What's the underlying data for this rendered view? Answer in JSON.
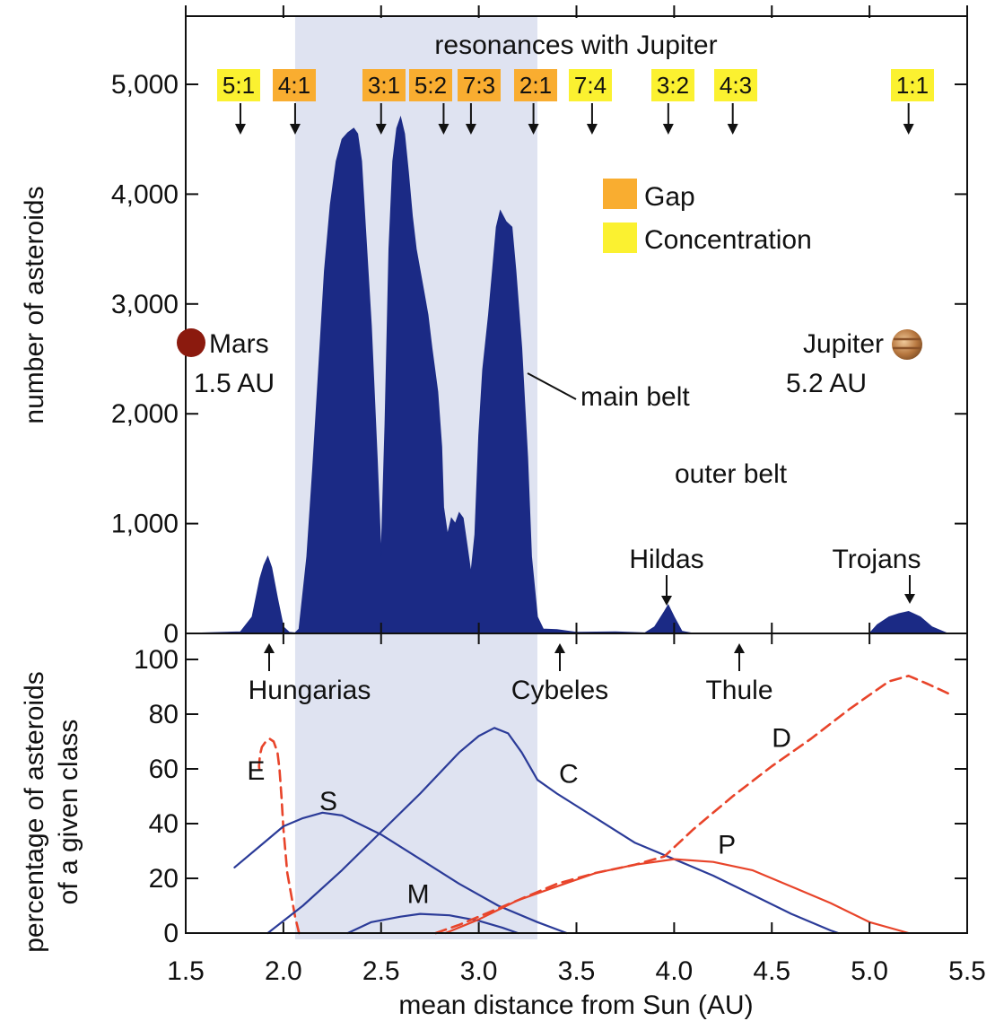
{
  "chart_data": [
    {
      "type": "area",
      "title": "resonances with Jupiter",
      "ylabel": "number of asteroids",
      "xlim": [
        1.5,
        5.5
      ],
      "ylim": [
        0,
        5000
      ],
      "yticks": [
        0,
        1000,
        2000,
        3000,
        4000,
        5000
      ],
      "ytick_labels": [
        "0",
        "1,000",
        "2,000",
        "3,000",
        "4,000",
        "5,000"
      ],
      "main_belt_range": [
        2.06,
        3.3
      ],
      "series": [
        {
          "color": "#1b2a85",
          "points": [
            [
              1.5,
              0
            ],
            [
              1.78,
              15
            ],
            [
              1.84,
              150
            ],
            [
              1.88,
              500
            ],
            [
              1.9,
              620
            ],
            [
              1.92,
              700
            ],
            [
              1.94,
              600
            ],
            [
              1.97,
              320
            ],
            [
              2.0,
              60
            ],
            [
              2.03,
              10
            ],
            [
              2.06,
              5
            ],
            [
              2.08,
              40
            ],
            [
              2.12,
              700
            ],
            [
              2.15,
              1500
            ],
            [
              2.18,
              2400
            ],
            [
              2.21,
              3300
            ],
            [
              2.24,
              3900
            ],
            [
              2.27,
              4300
            ],
            [
              2.3,
              4500
            ],
            [
              2.33,
              4560
            ],
            [
              2.36,
              4600
            ],
            [
              2.38,
              4550
            ],
            [
              2.4,
              4300
            ],
            [
              2.42,
              3700
            ],
            [
              2.45,
              2800
            ],
            [
              2.48,
              1600
            ],
            [
              2.5,
              700
            ],
            [
              2.52,
              1900
            ],
            [
              2.54,
              3500
            ],
            [
              2.56,
              4300
            ],
            [
              2.58,
              4600
            ],
            [
              2.6,
              4700
            ],
            [
              2.62,
              4550
            ],
            [
              2.64,
              4200
            ],
            [
              2.66,
              3800
            ],
            [
              2.68,
              3500
            ],
            [
              2.7,
              3300
            ],
            [
              2.72,
              3100
            ],
            [
              2.74,
              2900
            ],
            [
              2.76,
              2600
            ],
            [
              2.79,
              2200
            ],
            [
              2.81,
              1700
            ],
            [
              2.82,
              1150
            ],
            [
              2.84,
              900
            ],
            [
              2.86,
              1050
            ],
            [
              2.88,
              1000
            ],
            [
              2.9,
              1100
            ],
            [
              2.92,
              1050
            ],
            [
              2.94,
              800
            ],
            [
              2.96,
              550
            ],
            [
              2.98,
              900
            ],
            [
              3.0,
              1800
            ],
            [
              3.02,
              2400
            ],
            [
              3.05,
              2900
            ],
            [
              3.07,
              3300
            ],
            [
              3.09,
              3700
            ],
            [
              3.11,
              3850
            ],
            [
              3.14,
              3750
            ],
            [
              3.17,
              3700
            ],
            [
              3.19,
              3300
            ],
            [
              3.22,
              2600
            ],
            [
              3.25,
              1600
            ],
            [
              3.27,
              700
            ],
            [
              3.3,
              150
            ],
            [
              3.33,
              40
            ],
            [
              3.4,
              35
            ],
            [
              3.5,
              10
            ],
            [
              3.7,
              15
            ],
            [
              3.85,
              5
            ],
            [
              3.9,
              60
            ],
            [
              3.95,
              200
            ],
            [
              3.97,
              260
            ],
            [
              4.0,
              150
            ],
            [
              4.04,
              20
            ],
            [
              4.1,
              0
            ],
            [
              5.0,
              0
            ],
            [
              5.04,
              80
            ],
            [
              5.1,
              150
            ],
            [
              5.15,
              180
            ],
            [
              5.2,
              200
            ],
            [
              5.26,
              150
            ],
            [
              5.32,
              60
            ],
            [
              5.38,
              15
            ],
            [
              5.4,
              0
            ]
          ]
        }
      ],
      "resonances": [
        {
          "label": "5:1",
          "kind": "Concentration",
          "x": 1.78
        },
        {
          "label": "4:1",
          "kind": "Gap",
          "x": 2.06
        },
        {
          "label": "3:1",
          "kind": "Gap",
          "x": 2.5
        },
        {
          "label": "5:2",
          "kind": "Gap",
          "x": 2.82
        },
        {
          "label": "7:3",
          "kind": "Gap",
          "x": 2.96
        },
        {
          "label": "2:1",
          "kind": "Gap",
          "x": 3.28
        },
        {
          "label": "7:4",
          "kind": "Concentration",
          "x": 3.58
        },
        {
          "label": "3:2",
          "kind": "Concentration",
          "x": 3.97
        },
        {
          "label": "4:3",
          "kind": "Concentration",
          "x": 4.3
        },
        {
          "label": "1:1",
          "kind": "Concentration",
          "x": 5.2
        }
      ],
      "legend": [
        {
          "label": "Gap",
          "color": "#f9ad30"
        },
        {
          "label": "Concentration",
          "color": "#fbf130"
        }
      ],
      "annotations": {
        "mars": {
          "name": "Mars",
          "dist": "1.5 AU"
        },
        "jupiter": {
          "name": "Jupiter",
          "dist": "5.2 AU"
        },
        "main_belt": "main belt",
        "outer_belt": "outer belt",
        "hildas": "Hildas",
        "trojans": "Trojans",
        "hungarias": "Hungarias",
        "cybeles": "Cybeles",
        "thule": "Thule"
      },
      "colors": {
        "mars": "#8b1a0e",
        "jupiter": "#b7773f",
        "belt_band": "#dfe3f1"
      }
    },
    {
      "type": "line",
      "xlabel": "mean distance from Sun (AU)",
      "ylabel": "percentage of asteroids of a given class",
      "ylabel_lines": [
        "percentage of asteroids",
        "of a given class"
      ],
      "xlim": [
        1.5,
        5.5
      ],
      "ylim": [
        0,
        100
      ],
      "xticks": [
        1.5,
        2.0,
        2.5,
        3.0,
        3.5,
        4.0,
        4.5,
        5.0,
        5.5
      ],
      "xtick_labels": [
        "1.5",
        "2.0",
        "2.5",
        "3.0",
        "3.5",
        "4.0",
        "4.5",
        "5.0",
        "5.5"
      ],
      "yticks": [
        0,
        20,
        40,
        60,
        80,
        100
      ],
      "ytick_labels": [
        "0",
        "20",
        "40",
        "60",
        "80",
        "100"
      ],
      "series": [
        {
          "name": "E",
          "color": "#e8442a",
          "dashed": true,
          "label_at": [
            1.86,
            56
          ],
          "points": [
            [
              2.08,
              0
            ],
            [
              2.06,
              6
            ],
            [
              2.02,
              22
            ],
            [
              2.0,
              38
            ],
            [
              1.99,
              50
            ],
            [
              1.98,
              60
            ],
            [
              1.97,
              66
            ],
            [
              1.95,
              70
            ],
            [
              1.93,
              71
            ],
            [
              1.91,
              70
            ],
            [
              1.89,
              68
            ],
            [
              1.88,
              65
            ],
            [
              1.875,
              61
            ],
            [
              1.88,
              58
            ]
          ]
        },
        {
          "name": "S",
          "color": "#2b3b98",
          "dashed": false,
          "label_at": [
            2.23,
            45
          ],
          "points": [
            [
              1.75,
              24
            ],
            [
              1.9,
              33
            ],
            [
              2.0,
              39
            ],
            [
              2.1,
              42
            ],
            [
              2.2,
              44
            ],
            [
              2.3,
              43
            ],
            [
              2.5,
              36
            ],
            [
              2.7,
              27
            ],
            [
              2.9,
              18
            ],
            [
              3.1,
              10
            ],
            [
              3.3,
              4
            ],
            [
              3.45,
              0
            ]
          ]
        },
        {
          "name": "M",
          "color": "#2b3b98",
          "dashed": false,
          "label_at": [
            2.69,
            11
          ],
          "points": [
            [
              2.33,
              0
            ],
            [
              2.45,
              4
            ],
            [
              2.6,
              6
            ],
            [
              2.7,
              7
            ],
            [
              2.85,
              6.5
            ],
            [
              3.0,
              4.5
            ],
            [
              3.12,
              2
            ],
            [
              3.2,
              0
            ]
          ]
        },
        {
          "name": "C",
          "color": "#2b3b98",
          "dashed": false,
          "label_at": [
            3.46,
            55
          ],
          "points": [
            [
              1.92,
              0
            ],
            [
              2.1,
              10
            ],
            [
              2.3,
              23
            ],
            [
              2.5,
              37
            ],
            [
              2.7,
              51
            ],
            [
              2.9,
              66
            ],
            [
              3.0,
              72
            ],
            [
              3.08,
              75
            ],
            [
              3.15,
              73
            ],
            [
              3.22,
              66
            ],
            [
              3.3,
              56
            ],
            [
              3.4,
              51
            ],
            [
              3.6,
              42
            ],
            [
              3.8,
              33
            ],
            [
              4.0,
              27
            ],
            [
              4.2,
              21
            ],
            [
              4.4,
              14
            ],
            [
              4.6,
              7
            ],
            [
              4.8,
              1
            ],
            [
              4.84,
              0
            ]
          ]
        },
        {
          "name": "D",
          "color": "#e8442a",
          "dashed": true,
          "label_at": [
            4.55,
            68
          ],
          "points": [
            [
              2.78,
              0
            ],
            [
              2.9,
              3
            ],
            [
              3.0,
              6
            ],
            [
              3.2,
              12
            ],
            [
              3.4,
              18
            ],
            [
              3.6,
              22
            ],
            [
              3.8,
              25
            ],
            [
              3.95,
              28
            ],
            [
              4.1,
              38
            ],
            [
              4.3,
              50
            ],
            [
              4.5,
              61
            ],
            [
              4.7,
              71
            ],
            [
              4.9,
              82
            ],
            [
              5.1,
              92
            ],
            [
              5.2,
              94
            ],
            [
              5.3,
              91
            ],
            [
              5.42,
              87
            ]
          ]
        },
        {
          "name": "P",
          "color": "#e8442a",
          "dashed": false,
          "label_at": [
            4.27,
            29
          ],
          "points": [
            [
              2.83,
              0
            ],
            [
              3.0,
              5
            ],
            [
              3.2,
              12
            ],
            [
              3.4,
              17
            ],
            [
              3.6,
              22
            ],
            [
              3.8,
              25
            ],
            [
              4.0,
              27
            ],
            [
              4.2,
              26
            ],
            [
              4.4,
              23
            ],
            [
              4.6,
              17
            ],
            [
              4.8,
              11
            ],
            [
              5.0,
              4
            ],
            [
              5.2,
              0
            ]
          ]
        }
      ],
      "main_belt_range": [
        2.06,
        3.3
      ]
    }
  ]
}
